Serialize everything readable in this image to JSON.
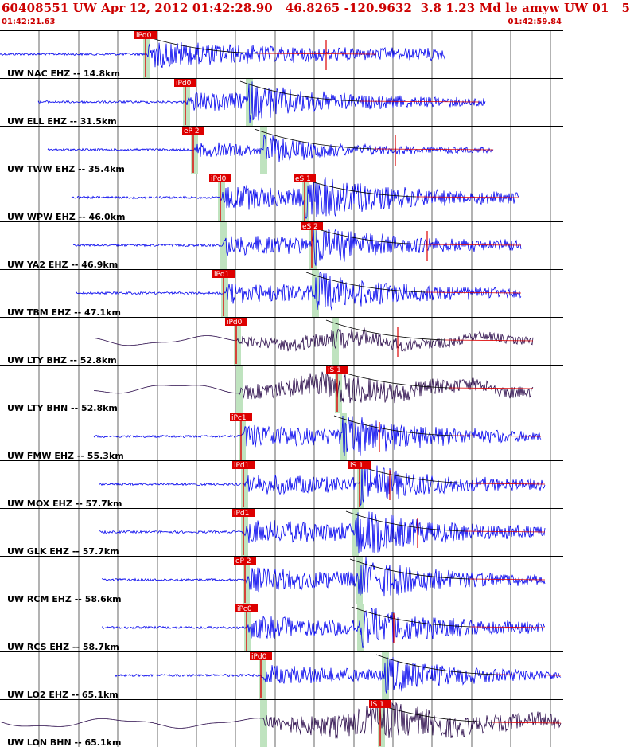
{
  "header": {
    "title": "60408551 UW Apr 12, 2012 01:42:28.90   46.8265 -120.9632  3.8 1.23 Md le amyw UW 01   5",
    "time_start": "01:42:21.63",
    "time_end": "01:42:59.84"
  },
  "colors": {
    "title": "#cc0000",
    "trace_blue": "#0000ee",
    "trace_dark": "#2a0a4a",
    "pick": "#dd0000",
    "window": "#bfe3bf",
    "coda": "#000000"
  },
  "traces": [
    {
      "label": "UW NAC EHZ -- 14.8km",
      "p_pick": "iPd0",
      "s_pick": "",
      "start": 0,
      "end": 560,
      "p": 183,
      "s": 0,
      "amp": 28,
      "dark": false,
      "marker": 410
    },
    {
      "label": "UW ELL EHZ -- 31.5km",
      "p_pick": "iPd0",
      "s_pick": "",
      "start": 48,
      "end": 610,
      "p": 233,
      "s": 312,
      "amp": 20,
      "dark": false,
      "marker": 0
    },
    {
      "label": "UW TWW EHZ -- 35.4km",
      "p_pick": "eP 2",
      "s_pick": "",
      "start": 60,
      "end": 620,
      "p": 243,
      "s": 330,
      "amp": 14,
      "dark": false,
      "marker": 497
    },
    {
      "label": "UW WPW EHZ -- 46.0km",
      "p_pick": "iPd0",
      "s_pick": "eS 1",
      "start": 90,
      "end": 652,
      "p": 277,
      "s": 383,
      "amp": 26,
      "dark": false,
      "marker": 0
    },
    {
      "label": "UW YA2 EHZ -- 46.9km",
      "p_pick": "",
      "s_pick": "eS 2",
      "start": 92,
      "end": 655,
      "p": 279,
      "s": 392,
      "amp": 22,
      "dark": false,
      "marker": 537
    },
    {
      "label": "UW TBM EHZ -- 47.1km",
      "p_pick": "iPd1",
      "s_pick": "",
      "start": 95,
      "end": 655,
      "p": 281,
      "s": 395,
      "amp": 22,
      "dark": false,
      "marker": 0
    },
    {
      "label": "UW LTY BHZ -- 52.8km",
      "p_pick": "iPd0",
      "s_pick": "",
      "start": 118,
      "end": 670,
      "p": 297,
      "s": 420,
      "amp": 14,
      "dark": true,
      "marker": 500
    },
    {
      "label": "UW LTY BHN -- 52.8km",
      "p_pick": "",
      "s_pick": "iS 1",
      "start": 118,
      "end": 670,
      "p": 300,
      "s": 424,
      "amp": 20,
      "dark": true,
      "marker": 0
    },
    {
      "label": "UW FMW EHZ -- 55.3km",
      "p_pick": "iPc1",
      "s_pick": "",
      "start": 118,
      "end": 680,
      "p": 303,
      "s": 430,
      "amp": 24,
      "dark": false,
      "marker": 477
    },
    {
      "label": "UW MOX EHZ -- 57.7km",
      "p_pick": "iPd1",
      "s_pick": "iS 1",
      "start": 125,
      "end": 685,
      "p": 306,
      "s": 452,
      "amp": 22,
      "dark": false,
      "marker": 490
    },
    {
      "label": "UW GLK EHZ -- 57.7km",
      "p_pick": "iPd1",
      "s_pick": "",
      "start": 125,
      "end": 685,
      "p": 306,
      "s": 445,
      "amp": 26,
      "dark": false,
      "marker": 525
    },
    {
      "label": "UW RCM EHZ -- 58.6km",
      "p_pick": "eP 2",
      "s_pick": "",
      "start": 128,
      "end": 685,
      "p": 308,
      "s": 450,
      "amp": 24,
      "dark": false,
      "marker": 0
    },
    {
      "label": "UW RCS EHZ -- 58.7km",
      "p_pick": "iPc0",
      "s_pick": "",
      "start": 128,
      "end": 685,
      "p": 310,
      "s": 452,
      "amp": 24,
      "dark": false,
      "marker": 495
    },
    {
      "label": "UW LO2 EHZ -- 65.1km",
      "p_pick": "iPd0",
      "s_pick": "",
      "start": 145,
      "end": 705,
      "p": 328,
      "s": 483,
      "amp": 20,
      "dark": false,
      "marker": 0
    },
    {
      "label": "UW LON BHN -- 65.1km",
      "p_pick": "",
      "s_pick": "iS 1",
      "start": 0,
      "end": 705,
      "p": 330,
      "s": 478,
      "amp": 24,
      "dark": true,
      "marker": 0
    }
  ]
}
